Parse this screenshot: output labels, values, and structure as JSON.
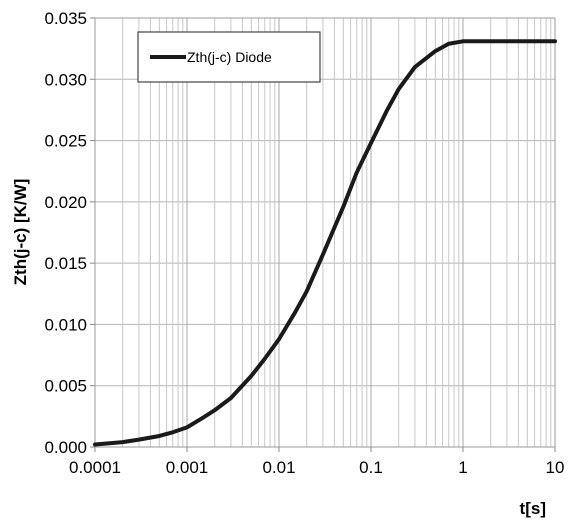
{
  "chart_data": {
    "type": "line",
    "xscale": "log",
    "xlim": [
      0.0001,
      10
    ],
    "ylim": [
      0,
      0.035
    ],
    "xlabel": "t[s]",
    "ylabel": "Zth(j-c) [K/W]",
    "x_ticks": [
      "0.0001",
      "0.001",
      "0.01",
      "0.1",
      "1",
      "10"
    ],
    "y_ticks": [
      "0.000",
      "0.005",
      "0.010",
      "0.015",
      "0.020",
      "0.025",
      "0.030",
      "0.035"
    ],
    "grid": true,
    "legend_position": "top-left",
    "series": [
      {
        "name": "Zth(j-c) Diode",
        "color": "#1a1a1a",
        "x": [
          0.0001,
          0.0002,
          0.0003,
          0.0005,
          0.0007,
          0.001,
          0.0015,
          0.002,
          0.003,
          0.005,
          0.007,
          0.01,
          0.015,
          0.02,
          0.03,
          0.05,
          0.07,
          0.1,
          0.15,
          0.2,
          0.3,
          0.5,
          0.7,
          1,
          1.5,
          2,
          3,
          5,
          7,
          10
        ],
        "y": [
          0.0002,
          0.0004,
          0.0006,
          0.0009,
          0.0012,
          0.0016,
          0.0024,
          0.003,
          0.004,
          0.0058,
          0.0072,
          0.0088,
          0.011,
          0.0127,
          0.0157,
          0.0196,
          0.0224,
          0.0248,
          0.0275,
          0.0292,
          0.031,
          0.0323,
          0.0329,
          0.0331,
          0.0331,
          0.0331,
          0.0331,
          0.0331,
          0.0331,
          0.0331
        ]
      }
    ]
  }
}
